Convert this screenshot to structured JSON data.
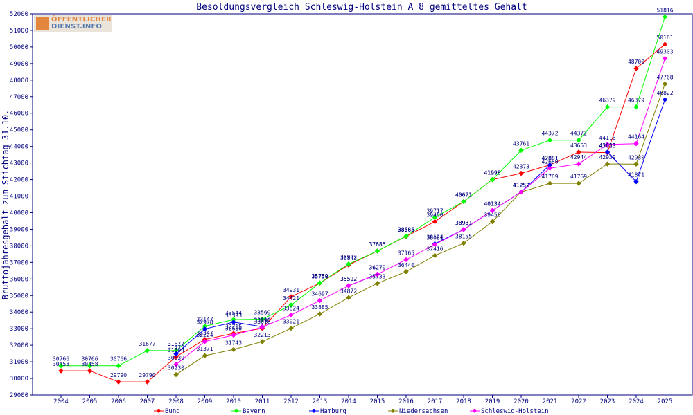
{
  "chart_data": {
    "type": "line",
    "title": "Besoldungsvergleich Schleswig-Holstein A 8 gemitteltes Gehalt",
    "xlabel": "",
    "ylabel": "Bruttojahresgehalt zum Stichtag 31.10.",
    "ylim": [
      29000,
      52000
    ],
    "y_ticks": [
      29000,
      30000,
      31000,
      32000,
      33000,
      34000,
      35000,
      36000,
      37000,
      38000,
      39000,
      40000,
      41000,
      42000,
      43000,
      44000,
      45000,
      46000,
      47000,
      48000,
      49000,
      50000,
      51000,
      52000
    ],
    "categories": [
      "2004",
      "2005",
      "2006",
      "2007",
      "2008",
      "2009",
      "2010",
      "2011",
      "2012",
      "2013",
      "2014",
      "2015",
      "2016",
      "2017",
      "2018",
      "2019",
      "2020",
      "2021",
      "2022",
      "2023",
      "2024",
      "2025"
    ],
    "grid": false,
    "legend_position": "bottom",
    "series": [
      {
        "name": "Bund",
        "color": "#ff0000",
        "values": [
          30458,
          30458,
          29790,
          29790,
          31304,
          32347,
          32715,
          33016,
          34931,
          35750,
          36843,
          37685,
          38565,
          39460,
          40671,
          41998,
          42373,
          42881,
          43653,
          43623,
          48700,
          50161
        ]
      },
      {
        "name": "Bayern",
        "color": "#00ff00",
        "values": [
          30766,
          30766,
          30766,
          31677,
          31677,
          33147,
          33544,
          33569,
          34421,
          35759,
          36902,
          37685,
          38585,
          39717,
          40671,
          41998,
          43761,
          44372,
          44372,
          46379,
          46379,
          51816
        ]
      },
      {
        "name": "Hamburg",
        "color": "#0000ff",
        "values": [
          null,
          null,
          null,
          null,
          31472,
          32978,
          33393,
          33116,
          null,
          null,
          35592,
          36279,
          null,
          38124,
          38981,
          40134,
          41252,
          42881,
          null,
          43653,
          41871,
          46822
        ]
      },
      {
        "name": "Niedersachsen",
        "color": "#808000",
        "values": [
          null,
          null,
          null,
          null,
          30230,
          31371,
          31743,
          32213,
          33021,
          33885,
          34872,
          35733,
          36440,
          37416,
          38155,
          39456,
          41252,
          41769,
          41769,
          42939,
          42930,
          47768
        ]
      },
      {
        "name": "Schleswig-Holstein",
        "color": "#ff00ff",
        "values": [
          null,
          null,
          null,
          null,
          30839,
          32224,
          32610,
          33096,
          33824,
          34697,
          35592,
          36279,
          37165,
          38081,
          38981,
          40134,
          41252,
          42680,
          42944,
          44116,
          44164,
          49303
        ]
      }
    ]
  },
  "logo": {
    "line1": "ÖFFENTLICHER",
    "line2": "DIENST.INFO"
  }
}
